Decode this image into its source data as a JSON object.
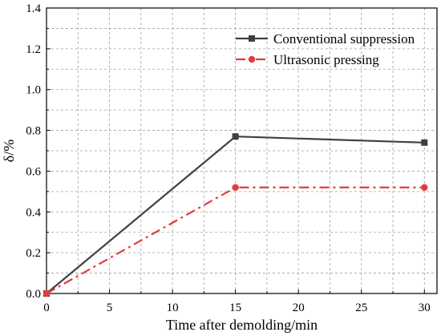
{
  "chart_data": {
    "type": "line",
    "xlabel": "Time after demolding/min",
    "ylabel": "δ/%",
    "xlim": [
      0,
      31
    ],
    "ylim": [
      0,
      1.4
    ],
    "x_ticks": [
      0,
      5,
      10,
      15,
      20,
      25,
      30
    ],
    "y_ticks": [
      0.0,
      0.2,
      0.4,
      0.6,
      0.8,
      1.0,
      1.2,
      1.4
    ],
    "x_tick_labels": [
      "0",
      "5",
      "10",
      "15",
      "20",
      "25",
      "30"
    ],
    "y_tick_labels": [
      "0.0",
      "0.2",
      "0.4",
      "0.6",
      "0.8",
      "1.0",
      "1.2",
      "1.4"
    ],
    "grid": true,
    "legend_position": "top-right",
    "series": [
      {
        "name": "Conventional suppression",
        "x": [
          0,
          15,
          30
        ],
        "values": [
          0.0,
          0.77,
          0.74
        ],
        "color": "#404040",
        "line_style": "solid",
        "marker": "square"
      },
      {
        "name": "Ultrasonic pressing",
        "x": [
          0,
          15,
          30
        ],
        "values": [
          0.0,
          0.52,
          0.52
        ],
        "color": "#e03c3c",
        "line_style": "dash-dot",
        "marker": "circle"
      }
    ]
  }
}
